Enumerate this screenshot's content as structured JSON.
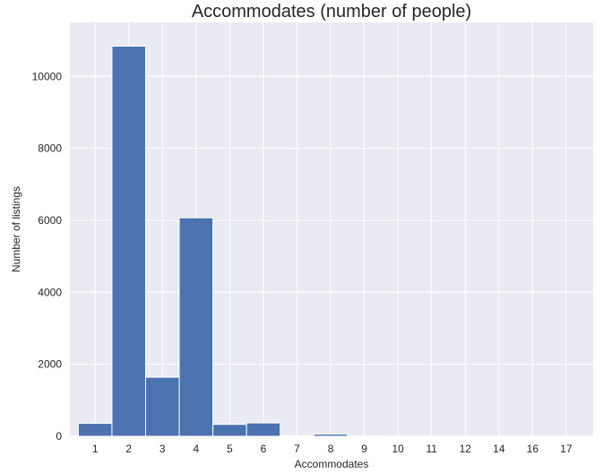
{
  "chart_data": {
    "type": "bar",
    "title": "Accommodates (number of people)",
    "xlabel": "Accommodates",
    "ylabel": "Number of listings",
    "categories": [
      "1",
      "2",
      "3",
      "4",
      "5",
      "6",
      "7",
      "8",
      "9",
      "10",
      "11",
      "12",
      "14",
      "16",
      "17"
    ],
    "values": [
      360,
      10840,
      1640,
      6070,
      330,
      370,
      20,
      60,
      5,
      4,
      2,
      3,
      2,
      2,
      1
    ],
    "ylim": [
      0,
      11500
    ],
    "yticks": [
      0,
      2000,
      4000,
      6000,
      8000,
      10000
    ],
    "ytick_labels": [
      "0",
      "2000",
      "4000",
      "6000",
      "8000",
      "10000"
    ],
    "grid": true,
    "colors": {
      "bar": "#4C72B0",
      "background": "#EAEAF2",
      "grid": "#FFFFFF"
    }
  }
}
